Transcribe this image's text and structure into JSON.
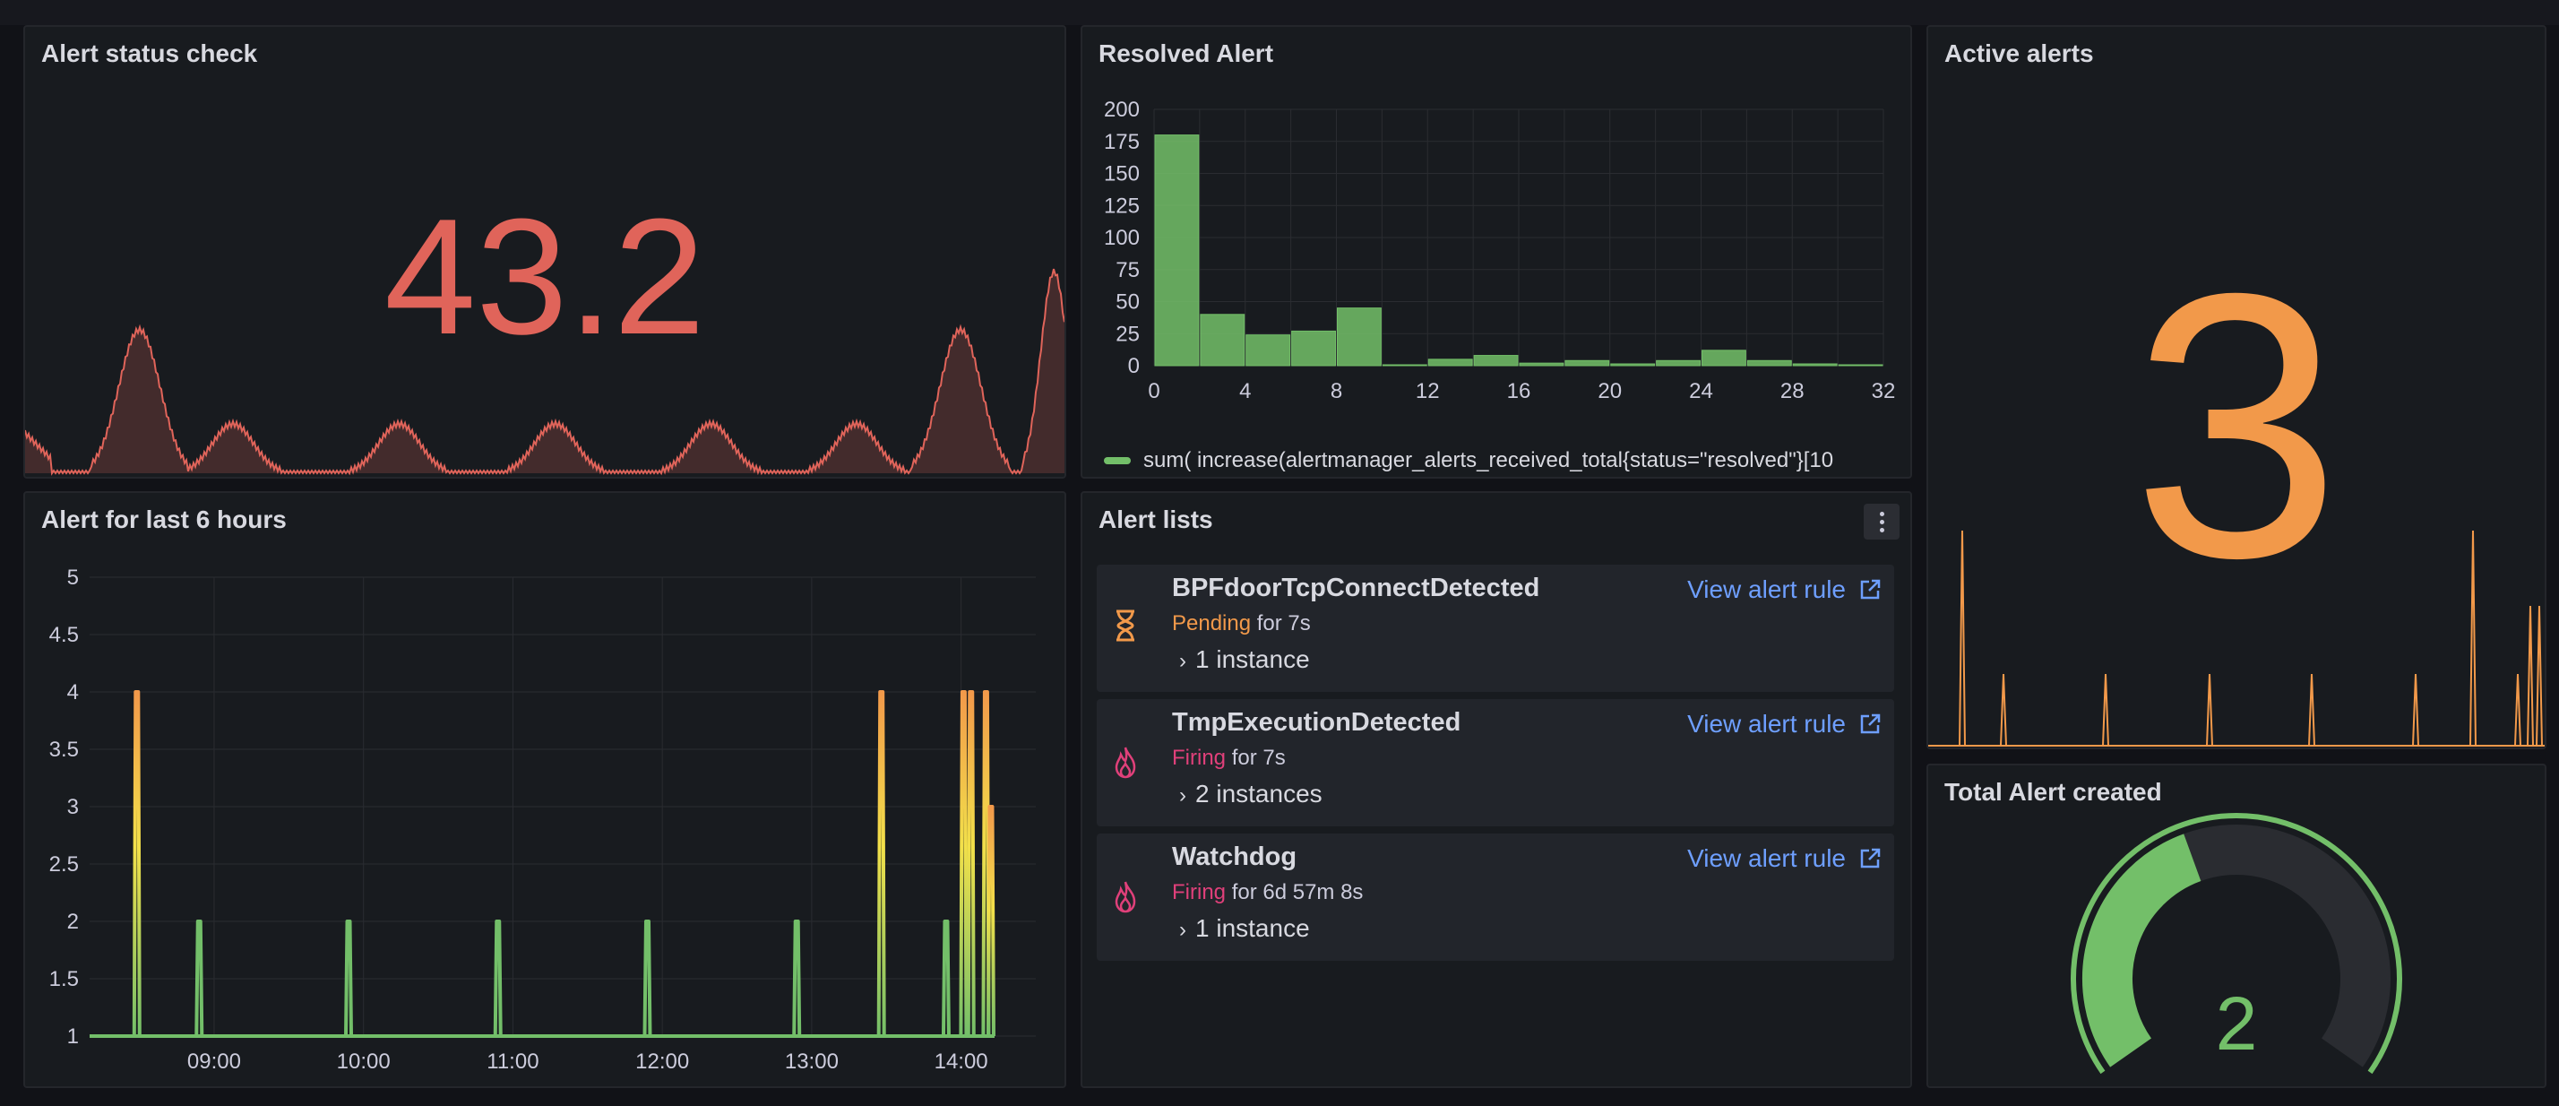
{
  "colors": {
    "background": "#111217",
    "panel": "#181b1f",
    "red": "#e0645a",
    "orange": "#f2994a",
    "green": "#73bf69",
    "yellow": "#f2e04a",
    "link": "#6e9fff",
    "pending": "#f2994a",
    "firing": "#e0407a"
  },
  "panels": {
    "alert_status_check": {
      "title": "Alert status check",
      "value": "43.2"
    },
    "resolved_alert": {
      "title": "Resolved Alert",
      "legend": "sum( increase(alertmanager_alerts_received_total{status=\"resolved\"}[10"
    },
    "active_alerts": {
      "title": "Active alerts",
      "value": "3"
    },
    "alert_last_6h": {
      "title": "Alert for last 6 hours"
    },
    "alert_lists": {
      "title": "Alert lists",
      "items": [
        {
          "name": "BPFdoorTcpConnectDetected",
          "state": "Pending",
          "duration": "for 7s",
          "instances": "1 instance",
          "link": "View alert rule",
          "icon": "hourglass-icon"
        },
        {
          "name": "TmpExecutionDetected",
          "state": "Firing",
          "duration": "for 7s",
          "instances": "2 instances",
          "link": "View alert rule",
          "icon": "fire-icon"
        },
        {
          "name": "Watchdog",
          "state": "Firing",
          "duration": "for 6d 57m 8s",
          "instances": "1 instance",
          "link": "View alert rule",
          "icon": "fire-icon"
        }
      ]
    },
    "total_alert_created": {
      "title": "Total Alert created",
      "value": "2"
    }
  },
  "chart_data": [
    {
      "type": "bar",
      "panel": "Resolved Alert",
      "x_ticks": [
        "0",
        "4",
        "8",
        "12",
        "16",
        "20",
        "24",
        "28",
        "32"
      ],
      "y_ticks": [
        "0",
        "25",
        "50",
        "75",
        "100",
        "125",
        "150",
        "175",
        "200"
      ],
      "ylim": [
        0,
        200
      ],
      "xlim": [
        0,
        32
      ],
      "bin_width": 2,
      "values": [
        180,
        40,
        24,
        27,
        45,
        0,
        5,
        8,
        2,
        4,
        1,
        4,
        12,
        4,
        1,
        0
      ],
      "color": "#73bf69",
      "legend": "sum( increase(alertmanager_alerts_received_total{status=\"resolved\"}[10"
    },
    {
      "type": "line",
      "panel": "Alert for last 6 hours",
      "x_ticks": [
        "09:00",
        "10:00",
        "11:00",
        "12:00",
        "13:00",
        "14:00"
      ],
      "y_ticks": [
        "1",
        "1.5",
        "2",
        "2.5",
        "3",
        "3.5",
        "4",
        "4.5",
        "5"
      ],
      "ylim": [
        1,
        5
      ],
      "xlim_minutes": [
        490,
        870
      ],
      "baseline": 1,
      "spikes": [
        {
          "t": 509,
          "v": 4
        },
        {
          "t": 534,
          "v": 2
        },
        {
          "t": 594,
          "v": 2
        },
        {
          "t": 654,
          "v": 2
        },
        {
          "t": 714,
          "v": 2
        },
        {
          "t": 774,
          "v": 2
        },
        {
          "t": 808,
          "v": 4
        },
        {
          "t": 834,
          "v": 2
        },
        {
          "t": 841,
          "v": 4
        },
        {
          "t": 844,
          "v": 4
        },
        {
          "t": 850,
          "v": 4
        },
        {
          "t": 852,
          "v": 3
        }
      ]
    },
    {
      "type": "area",
      "panel": "Alert status check",
      "sparkline_peaks": [
        0.11,
        0.2,
        0.36,
        0.51,
        0.66,
        0.8,
        0.9,
        0.99
      ],
      "color": "#e0645a"
    },
    {
      "type": "line",
      "panel": "Active alerts",
      "color": "#f2994a"
    },
    {
      "type": "gauge",
      "panel": "Total Alert created",
      "value": 2,
      "fraction": 0.42,
      "color": "#73bf69"
    }
  ]
}
